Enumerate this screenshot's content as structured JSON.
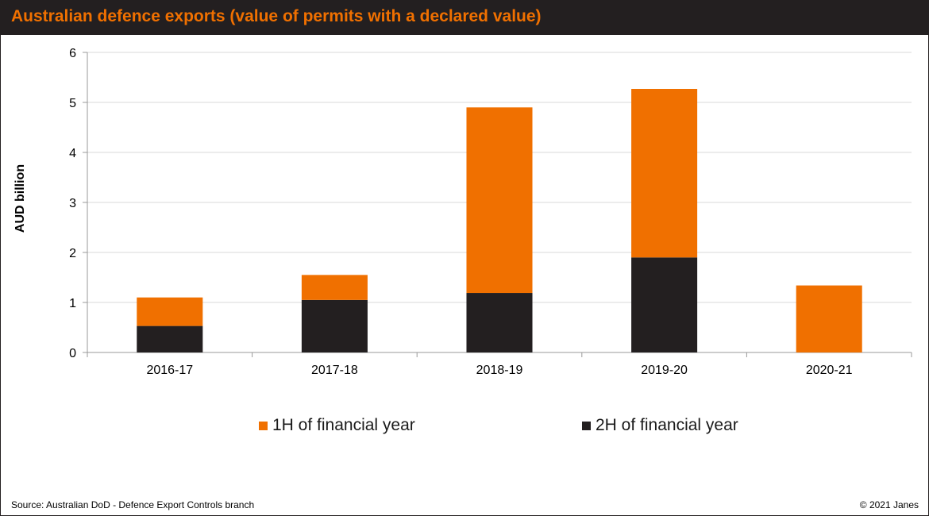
{
  "title": "Australian defence exports (value of permits with a declared value)",
  "footer": {
    "source": "Source: Australian DoD - Defence Export Controls branch",
    "copyright": "© 2021 Janes"
  },
  "colors": {
    "accent": "#f07000",
    "dark": "#231f20",
    "grid": "#d9d9d9"
  },
  "chart_data": {
    "type": "bar",
    "stacked": true,
    "title": "Australian defence exports (value of permits with a declared value)",
    "xlabel": "",
    "ylabel": "AUD billion",
    "ylim": [
      0,
      6
    ],
    "yticks": [
      "0",
      "1",
      "2",
      "3",
      "4",
      "5",
      "6"
    ],
    "grid": true,
    "legend_position": "bottom",
    "categories": [
      "2016-17",
      "2017-18",
      "2018-19",
      "2019-20",
      "2020-21"
    ],
    "series": [
      {
        "name": "2H of financial year",
        "color": "#231f20",
        "values": [
          0.53,
          1.05,
          1.19,
          1.9,
          0
        ]
      },
      {
        "name": "1H of financial year",
        "color": "#f07000",
        "values": [
          0.57,
          0.5,
          3.71,
          3.37,
          1.34
        ]
      }
    ]
  }
}
